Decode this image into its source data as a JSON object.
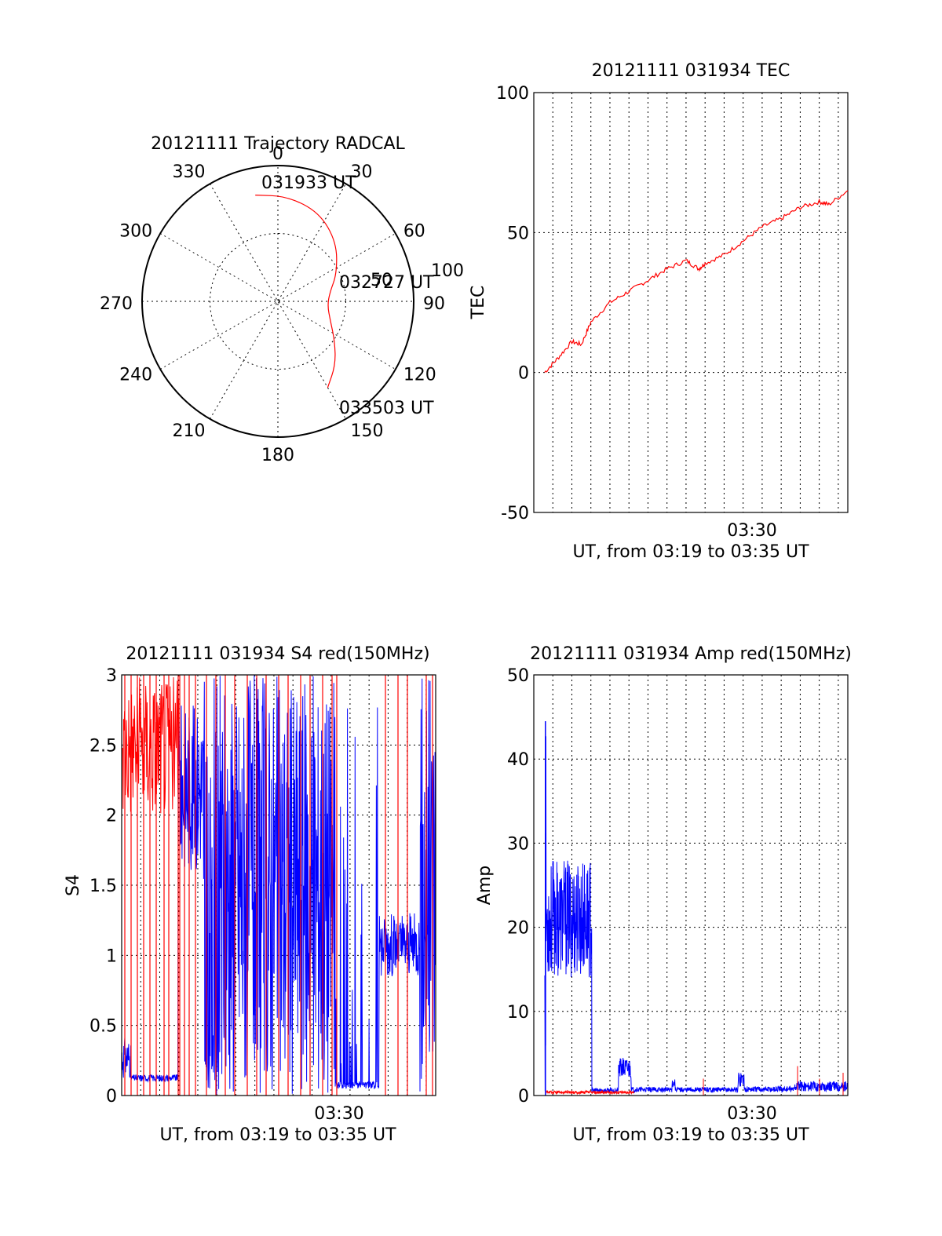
{
  "chart_data": [
    {
      "type": "polar",
      "title": "20121111 Trajectory RADCAL",
      "angle_ticks": [
        "0",
        "30",
        "60",
        "90",
        "120",
        "150",
        "180",
        "210",
        "240",
        "270",
        "300",
        "330"
      ],
      "radius_ticks": [
        "50",
        "100"
      ],
      "radius_max": 100,
      "start_label": "031933 UT",
      "mid_label": "032727 UT",
      "end_label": "033503 UT",
      "grid": true,
      "trajectory": {
        "color": "#ff0000",
        "points": [
          {
            "azimuth": 348,
            "elevation": 18
          },
          {
            "azimuth": 5,
            "elevation": 20
          },
          {
            "azimuth": 25,
            "elevation": 25
          },
          {
            "azimuth": 45,
            "elevation": 35
          },
          {
            "azimuth": 65,
            "elevation": 47
          },
          {
            "azimuth": 80,
            "elevation": 55
          },
          {
            "azimuth": 95,
            "elevation": 57
          },
          {
            "azimuth": 110,
            "elevation": 53
          },
          {
            "azimuth": 125,
            "elevation": 44
          },
          {
            "azimuth": 138,
            "elevation": 33
          },
          {
            "azimuth": 150,
            "elevation": 24
          }
        ]
      }
    },
    {
      "type": "line",
      "title": "20121111 031934 TEC",
      "ylabel": "TEC",
      "xlabel": "UT, from 03:19 to 03:35 UT",
      "x_tick_label": "03:30",
      "xlim": [
        "03:19:00",
        "03:35:30"
      ],
      "ylim": [
        -50,
        100
      ],
      "y_ticks": [
        "-50",
        "0",
        "50",
        "100"
      ],
      "grid": true,
      "series": [
        {
          "color": "#ff0000",
          "points": [
            [
              "03:19:34",
              0
            ],
            [
              "03:20:15",
              5
            ],
            [
              "03:21:00",
              11
            ],
            [
              "03:21:30",
              10
            ],
            [
              "03:22:00",
              18
            ],
            [
              "03:23:00",
              25
            ],
            [
              "03:24:00",
              29
            ],
            [
              "03:25:00",
              33
            ],
            [
              "03:26:00",
              37
            ],
            [
              "03:27:00",
              40
            ],
            [
              "03:27:40",
              37
            ],
            [
              "03:28:00",
              39
            ],
            [
              "03:29:00",
              42
            ],
            [
              "03:30:00",
              47
            ],
            [
              "03:31:00",
              52
            ],
            [
              "03:32:00",
              55
            ],
            [
              "03:33:00",
              59
            ],
            [
              "03:34:00",
              61
            ],
            [
              "03:34:30",
              60
            ],
            [
              "03:35:30",
              65
            ]
          ]
        }
      ]
    },
    {
      "type": "line",
      "title": "20121111 031934 S4 red(150MHz)",
      "ylabel": "S4",
      "xlabel": "UT, from 03:19 to 03:35 UT",
      "x_tick_label": "03:30",
      "xlim": [
        "03:19:00",
        "03:35:30"
      ],
      "ylim": [
        0,
        3
      ],
      "y_ticks": [
        "0",
        "0.5",
        "1",
        "1.5",
        "2",
        "2.5",
        "3"
      ],
      "grid": true,
      "series": [
        {
          "name": "",
          "color": "#ff0000",
          "description_free": true
        },
        {
          "name": "",
          "color": "#0000ff",
          "description_free": true
        }
      ]
    },
    {
      "type": "line",
      "title": "20121111 031934 Amp red(150MHz)",
      "ylabel": "Amp",
      "xlabel": "UT, from 03:19 to 03:35 UT",
      "x_tick_label": "03:30",
      "xlim": [
        "03:19:00",
        "03:35:30"
      ],
      "ylim": [
        0,
        50
      ],
      "y_ticks": [
        "0",
        "10",
        "20",
        "30",
        "40",
        "50"
      ],
      "grid": true,
      "series": [
        {
          "name": "",
          "color": "#0000ff",
          "description_free": true
        },
        {
          "name": "",
          "color": "#ff0000",
          "description_free": true
        }
      ]
    }
  ]
}
